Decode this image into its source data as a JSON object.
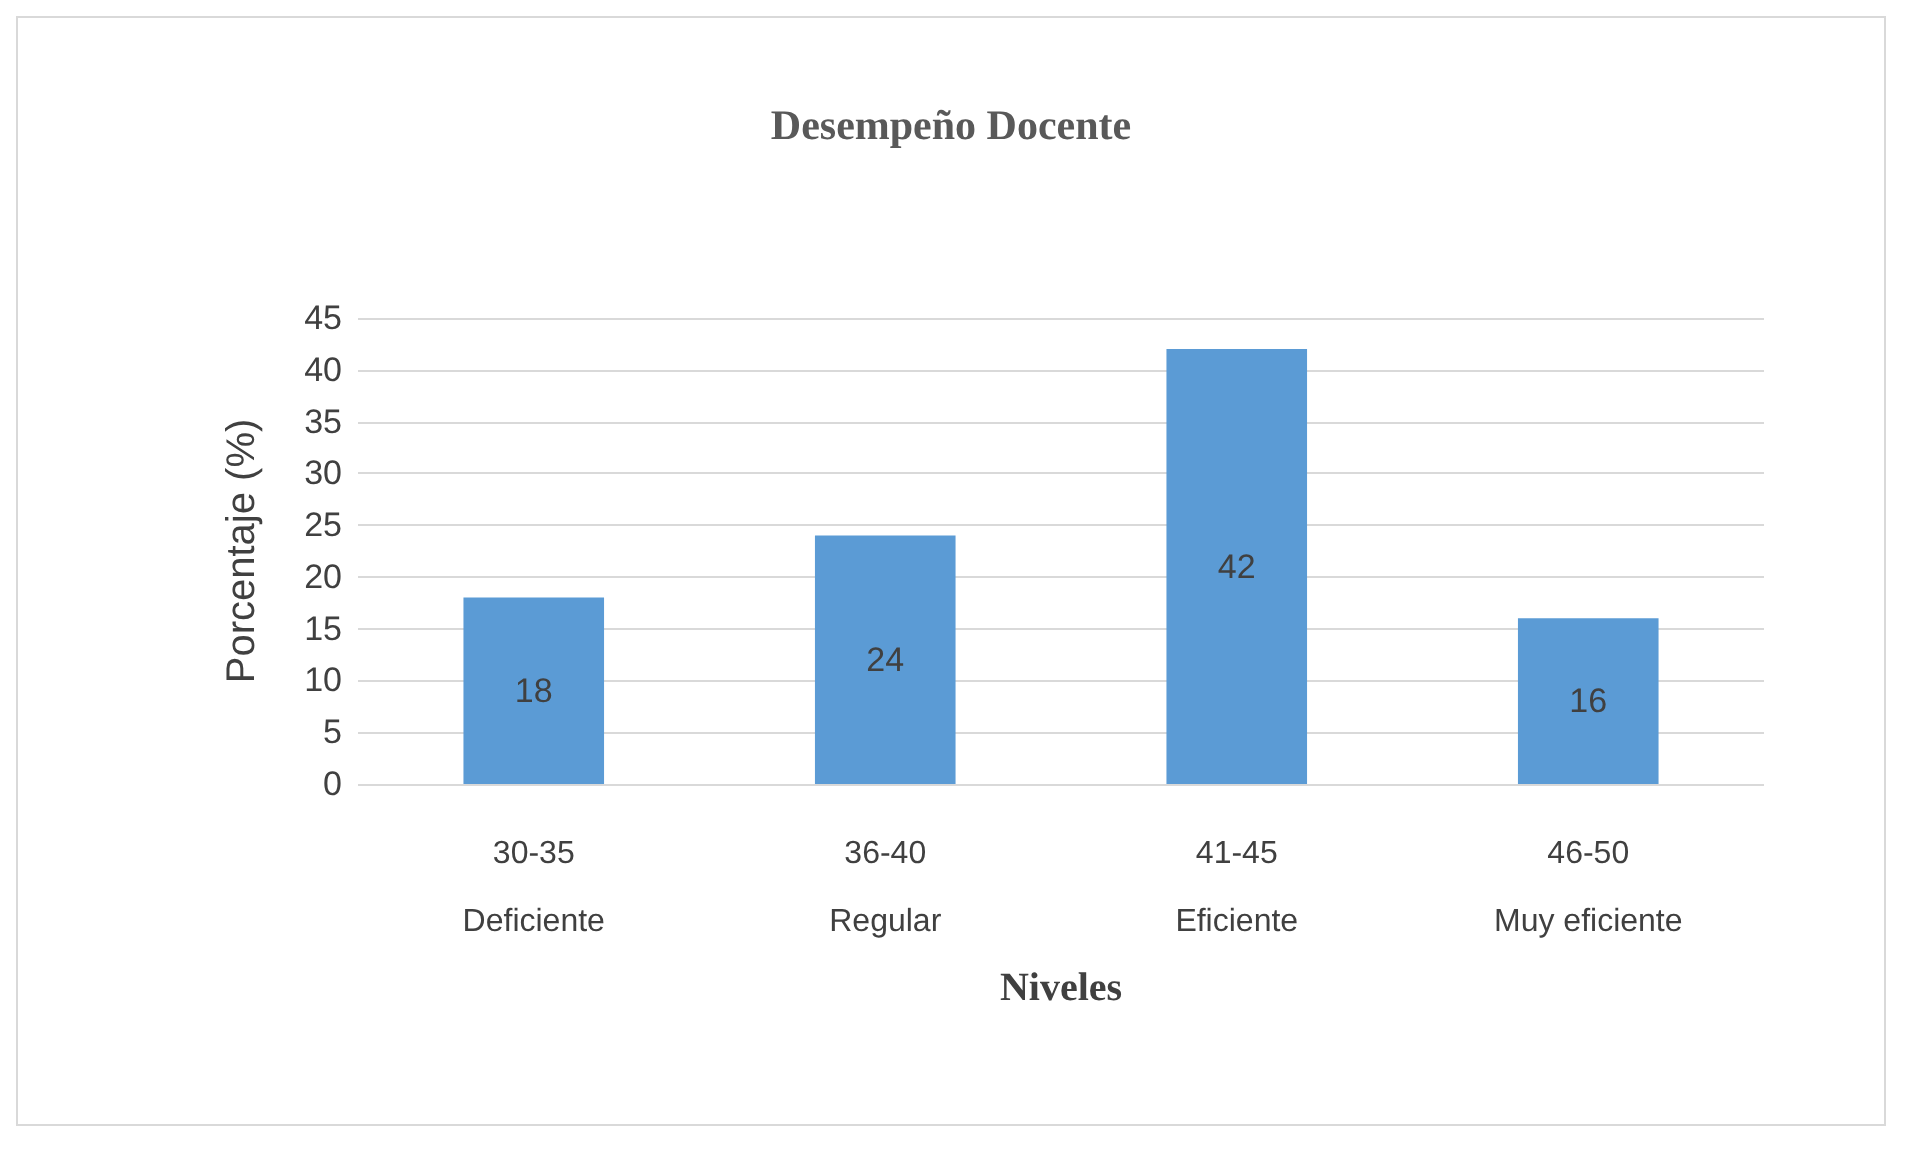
{
  "chart_data": {
    "type": "bar",
    "title": "Desempeño Docente",
    "xlabel": "Niveles",
    "ylabel": "Porcentaje (%)",
    "categories": [
      "30-35\nDeficiente",
      "36-40\nRegular",
      "41-45\nEficiente",
      "46-50\nMuy eficiente"
    ],
    "values": [
      18,
      24,
      42,
      16
    ],
    "color": "#5b9bd5",
    "ylim": [
      0,
      45
    ],
    "yticks": [
      0,
      5,
      10,
      15,
      20,
      25,
      30,
      35,
      40,
      45
    ],
    "grid": "y",
    "data_labels": true
  }
}
